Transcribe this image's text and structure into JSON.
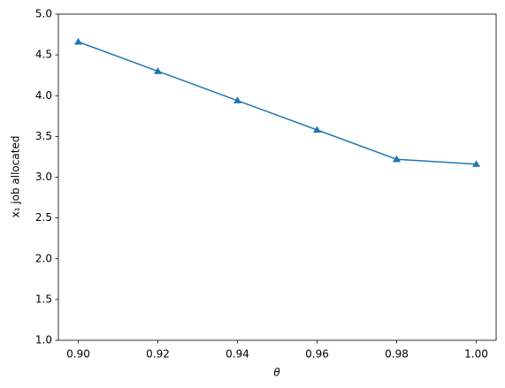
{
  "chart_data": {
    "type": "line",
    "x_label": "θ",
    "y_label": "x₁ job allocated",
    "x": [
      0.9,
      0.92,
      0.94,
      0.96,
      0.98,
      1.0
    ],
    "series": [
      {
        "color": "#1f77b4",
        "marker": "triangle",
        "values": [
          4.66,
          4.3,
          3.94,
          3.58,
          3.22,
          3.16
        ]
      }
    ],
    "xlim": [
      0.895,
      1.005
    ],
    "ylim": [
      1.0,
      5.0
    ],
    "xticks": [
      {
        "value": 0.9,
        "label": "0.90"
      },
      {
        "value": 0.92,
        "label": "0.92"
      },
      {
        "value": 0.94,
        "label": "0.94"
      },
      {
        "value": 0.96,
        "label": "0.96"
      },
      {
        "value": 0.98,
        "label": "0.98"
      },
      {
        "value": 1.0,
        "label": "1.00"
      }
    ],
    "yticks": [
      {
        "value": 1.0,
        "label": "1.0"
      },
      {
        "value": 1.5,
        "label": "1.5"
      },
      {
        "value": 2.0,
        "label": "2.0"
      },
      {
        "value": 2.5,
        "label": "2.5"
      },
      {
        "value": 3.0,
        "label": "3.0"
      },
      {
        "value": 3.5,
        "label": "3.5"
      },
      {
        "value": 4.0,
        "label": "4.0"
      },
      {
        "value": 4.5,
        "label": "4.5"
      },
      {
        "value": 5.0,
        "label": "5.0"
      }
    ],
    "grid": false
  }
}
